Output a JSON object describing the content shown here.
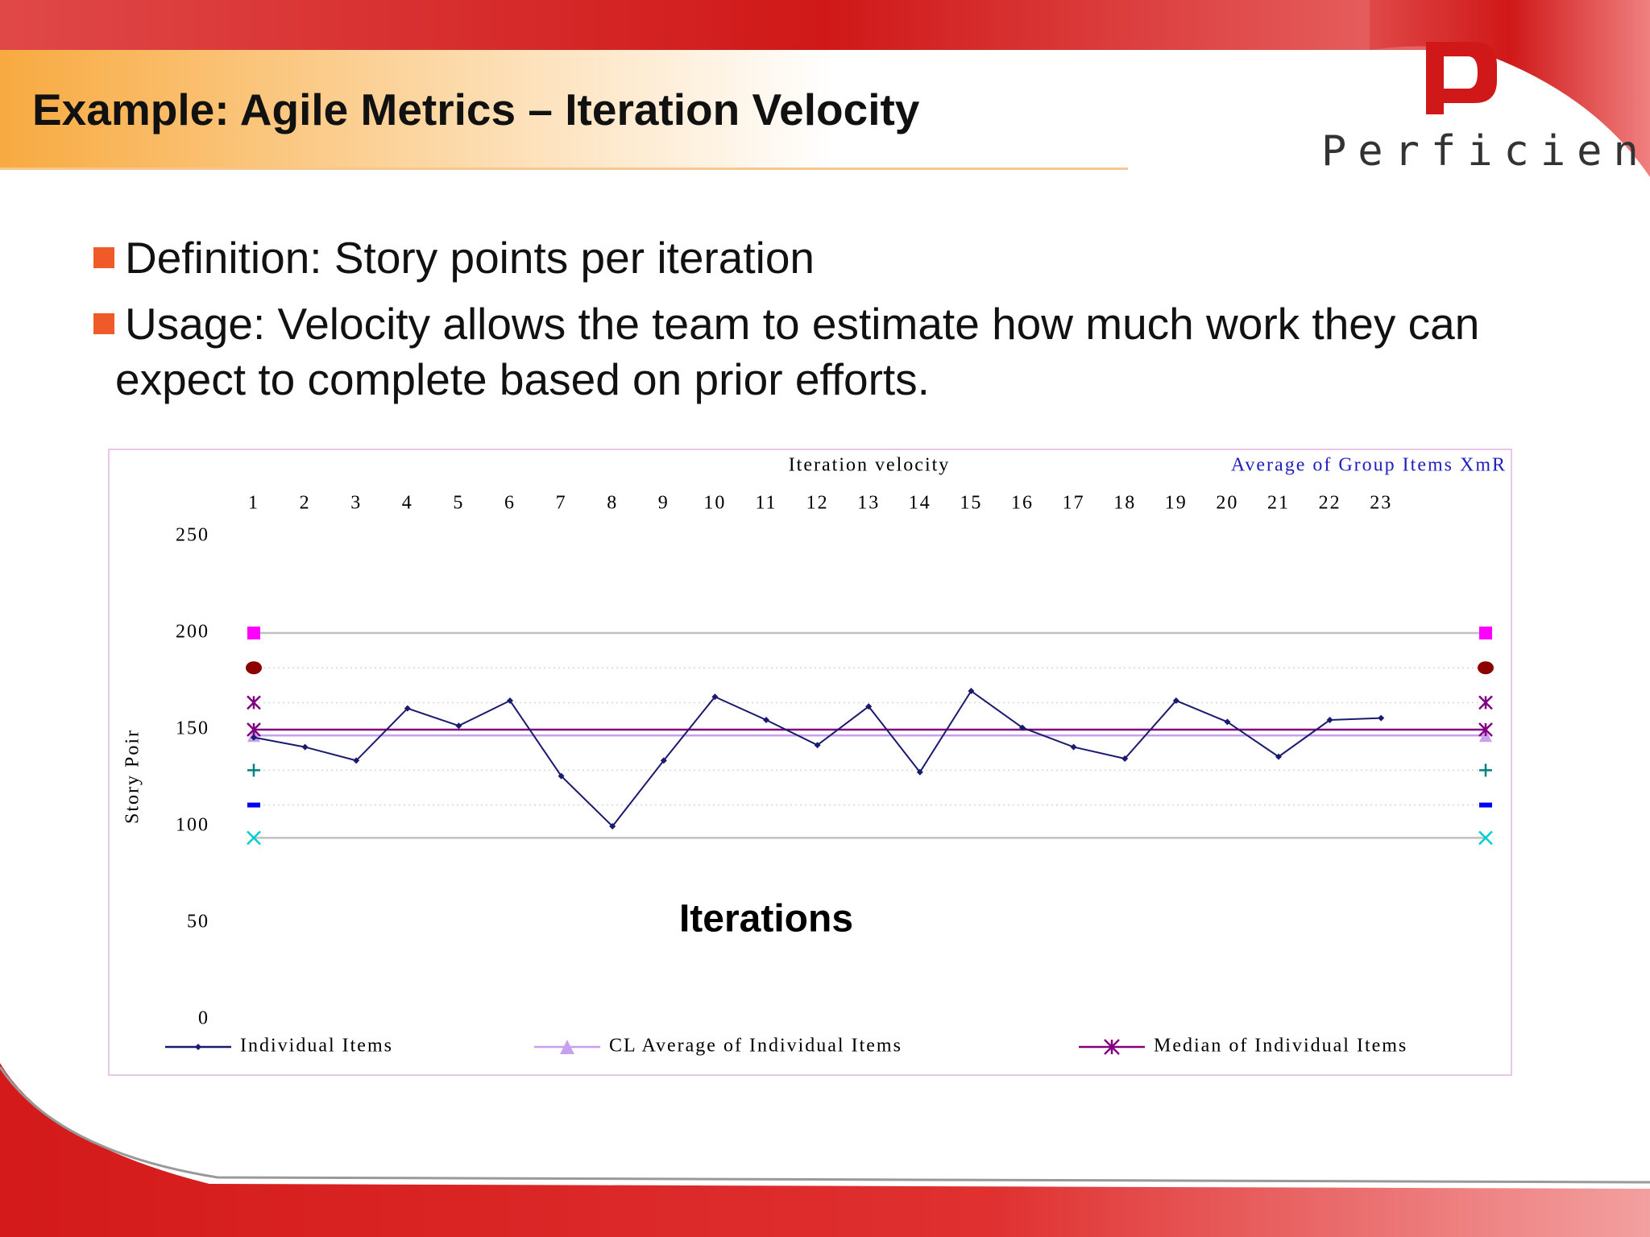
{
  "slide": {
    "title": "Example: Agile Metrics – Iteration Velocity",
    "logo": "Perficient",
    "bullets": [
      "Definition: Story points per iteration",
      "Usage: Velocity allows the team to estimate how much work they can expect to complete based on prior efforts."
    ]
  },
  "chart_data": {
    "type": "line",
    "title": "Iteration velocity",
    "subtitle": "Average of Group Items XmR",
    "x_label": "Iterations",
    "y_label": "Story Poir",
    "categories": [
      "1",
      "2",
      "3",
      "4",
      "5",
      "6",
      "7",
      "8",
      "9",
      "10",
      "11",
      "12",
      "13",
      "14",
      "15",
      "16",
      "17",
      "18",
      "19",
      "20",
      "21",
      "22",
      "23"
    ],
    "series": [
      {
        "name": "Individual Items",
        "color": "#1a1a6e",
        "values": [
          146,
          141,
          134,
          161,
          152,
          165,
          126,
          100,
          134,
          167,
          155,
          142,
          162,
          128,
          170,
          151,
          141,
          135,
          165,
          154,
          136,
          155,
          156
        ]
      }
    ],
    "reference_lines": [
      {
        "value": 200,
        "color": "#ff00ff",
        "marker": "square",
        "line_color": "#c0c0c0",
        "line": "solid"
      },
      {
        "value": 182,
        "color": "#8b0000",
        "marker": "circle",
        "line_color": "#d8d8d8",
        "line": "dotted"
      },
      {
        "value": 164,
        "color": "#800080",
        "marker": "asterisk",
        "line_color": "#d8d8d8",
        "line": "dotted"
      },
      {
        "name": "CL Average of Individual Items",
        "value": 147,
        "color": "#c8a0f0",
        "marker": "triangle",
        "line_color": "#c8a0f0",
        "line": "solid"
      },
      {
        "name": "Median of Individual Items",
        "value": 150,
        "color": "#800080",
        "marker": "asterisk",
        "line_color": "#800080",
        "line": "solid"
      },
      {
        "value": 129,
        "color": "#008080",
        "marker": "plus",
        "line_color": "#d8d8d8",
        "line": "dotted"
      },
      {
        "value": 111,
        "color": "#0000ff",
        "marker": "dash",
        "line_color": "#d8d8d8",
        "line": "dotted"
      },
      {
        "value": 94,
        "color": "#00cccc",
        "marker": "x",
        "line_color": "#c0c0c0",
        "line": "solid"
      }
    ],
    "ylim": [
      0,
      250
    ],
    "yticks": [
      0,
      50,
      100,
      150,
      200,
      250
    ]
  }
}
